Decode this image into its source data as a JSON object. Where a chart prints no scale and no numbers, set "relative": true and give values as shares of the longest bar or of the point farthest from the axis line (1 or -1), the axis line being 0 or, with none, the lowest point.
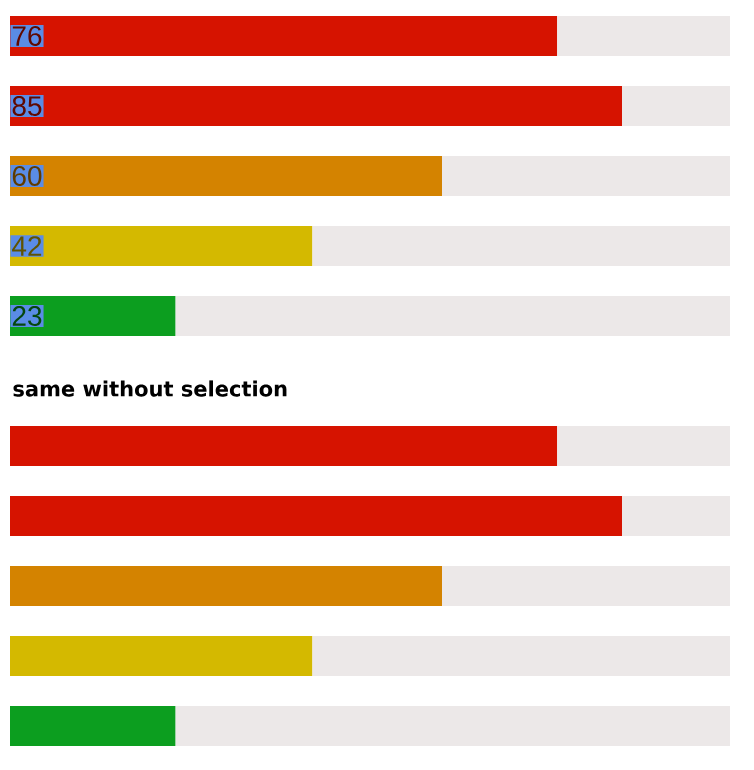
{
  "chart_data": [
    {
      "type": "bar",
      "orientation": "horizontal",
      "stacked": true,
      "categories": [
        null,
        null,
        null,
        null,
        null
      ],
      "xlim": [
        0,
        100
      ],
      "series": [
        {
          "values": [
            76,
            85,
            60,
            42,
            23
          ],
          "colors": [
            "#d61300",
            "#d61300",
            "#d48300",
            "#d4b900",
            "#0c9e1f"
          ],
          "value_labels": [
            "76",
            "85",
            "60",
            "42",
            "23"
          ]
        },
        {
          "values": [
            24,
            15,
            40,
            58,
            77
          ],
          "color": "#ece8e8"
        }
      ]
    },
    {
      "type": "bar",
      "orientation": "horizontal",
      "stacked": true,
      "relative": true,
      "title": "same without selection",
      "categories": [
        null,
        null,
        null,
        null,
        null
      ],
      "series": [
        {
          "values": [
            0.76,
            0.85,
            0.6,
            0.42,
            0.23
          ],
          "colors": [
            "#d61300",
            "#d61300",
            "#d48300",
            "#d4b900",
            "#0c9e1f"
          ]
        },
        {
          "values": [
            0.24,
            0.15,
            0.4,
            0.58,
            0.77
          ],
          "color": "#ece8e8"
        }
      ]
    }
  ]
}
